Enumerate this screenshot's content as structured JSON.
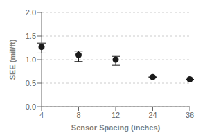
{
  "chart_data": {
    "type": "scatter",
    "categories": [
      "4",
      "8",
      "12",
      "24",
      "36"
    ],
    "values": [
      1.27,
      1.1,
      1.0,
      0.63,
      0.58
    ],
    "errors_low": [
      0.13,
      0.14,
      0.12,
      0.0,
      0.0
    ],
    "errors_high": [
      0.08,
      0.08,
      0.07,
      0.0,
      0.0
    ],
    "xlabel": "Sensor Spacing (inches)",
    "ylabel": "SEE (mil/ft)",
    "ylim": [
      0.0,
      2.0
    ],
    "yticks": [
      {
        "value": 0.0,
        "label": "0.0"
      },
      0.5,
      {
        "value": 1.0,
        "label": "1.0"
      },
      1.5,
      {
        "value": 2.0,
        "label": "2.0"
      }
    ],
    "color": "#1a1a1a",
    "grid": true
  }
}
